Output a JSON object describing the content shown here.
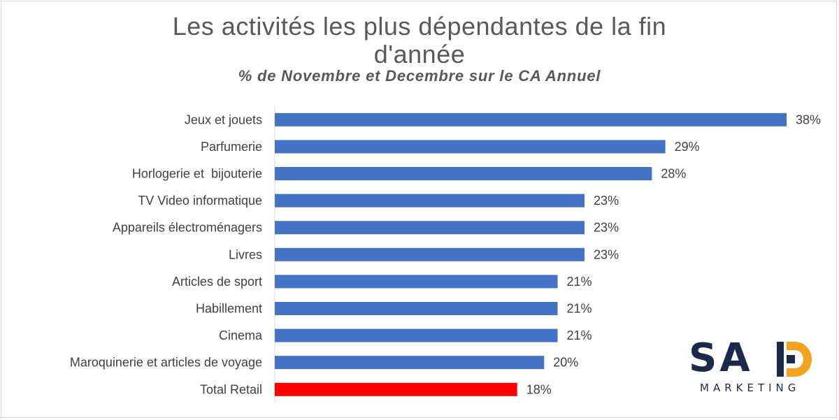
{
  "header": {
    "title_line1": "Les activités les plus dépendantes de la fin",
    "title_line2": "d'année",
    "subtitle": "% de Novembre et Decembre sur le CA Annuel"
  },
  "logo": {
    "letters": "SA",
    "letter_d": "D",
    "tagline": "MARKETING"
  },
  "colors": {
    "bar": "#4472c4",
    "highlight": "#ff0000",
    "axis": "#d9d9d9",
    "logo_dark": "#1b2a4a",
    "logo_accent": "#f4a11d"
  },
  "chart_data": {
    "type": "bar",
    "orientation": "horizontal",
    "title": "Les activités les plus dépendantes de la fin d'année",
    "subtitle": "% de Novembre et Decembre sur le CA Annuel",
    "xlabel": "",
    "ylabel": "",
    "xlim": [
      0,
      38
    ],
    "grid": false,
    "legend": "none",
    "categories": [
      "Jeux et jouets",
      "Parfumerie",
      "Horlogerie et  bijouterie",
      "TV Video informatique",
      "Appareils électroménagers",
      "Livres",
      "Articles de sport",
      "Habillement",
      "Cinema",
      "Maroquinerie et articles de voyage",
      "Total Retail"
    ],
    "values": [
      38,
      29,
      28,
      23,
      23,
      23,
      21,
      21,
      21,
      20,
      18
    ],
    "data_labels": [
      "38%",
      "29%",
      "28%",
      "23%",
      "23%",
      "23%",
      "21%",
      "21%",
      "21%",
      "20%",
      "18%"
    ],
    "highlight_category": "Total Retail"
  }
}
